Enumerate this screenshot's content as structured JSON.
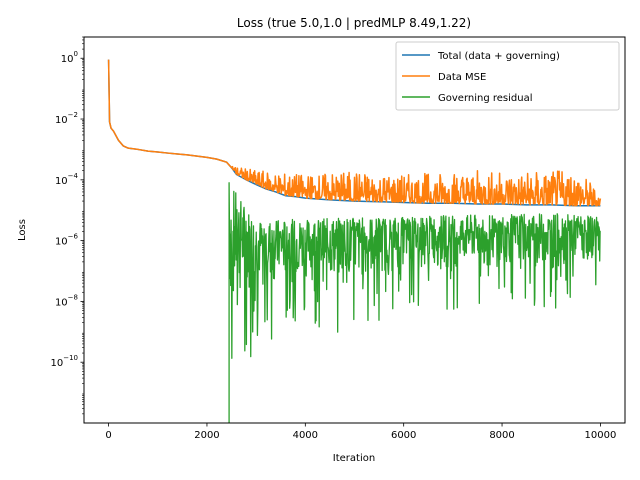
{
  "chart_data": {
    "type": "line",
    "title": "Loss (true 5.0,1.0 | predMLP 8.49,1.22)",
    "xlabel": "Iteration",
    "ylabel": "Loss",
    "xlim": [
      -500,
      10500
    ],
    "ylim": [
      1e-12,
      5
    ],
    "yscale": "log",
    "grid": false,
    "legend_position": "top-right",
    "x_ticks": [
      0,
      2000,
      4000,
      6000,
      8000,
      10000
    ],
    "x_tick_labels": [
      "0",
      "2000",
      "4000",
      "6000",
      "8000",
      "10000"
    ],
    "y_ticks": [
      1,
      0.01,
      0.0001,
      1e-06,
      1e-08,
      1e-10
    ],
    "y_tick_labels": [
      {
        "base": "10",
        "exp": "0"
      },
      {
        "base": "10",
        "exp": "−2"
      },
      {
        "base": "10",
        "exp": "−4"
      },
      {
        "base": "10",
        "exp": "−6"
      },
      {
        "base": "10",
        "exp": "−8"
      },
      {
        "base": "10",
        "exp": "−10"
      }
    ],
    "series": [
      {
        "name": "Total (data + governing)",
        "color": "#1f77b4",
        "x": [
          0,
          20,
          50,
          100,
          200,
          300,
          400,
          600,
          800,
          1000,
          1200,
          1400,
          1600,
          1800,
          2000,
          2200,
          2400,
          2500,
          2600,
          2800,
          3000,
          3200,
          3400,
          3600,
          3800,
          4000,
          4500,
          5000,
          5500,
          6000,
          6500,
          7000,
          7500,
          8000,
          8500,
          9000,
          9500,
          10000
        ],
        "y": [
          0.9,
          0.008,
          0.005,
          0.004,
          0.002,
          0.0013,
          0.0011,
          0.001,
          0.00088,
          0.00082,
          0.00076,
          0.00071,
          0.00066,
          0.0006,
          0.00055,
          0.00048,
          0.00038,
          0.00025,
          0.00015,
          0.0001,
          7e-05,
          5e-05,
          4e-05,
          3e-05,
          2.8e-05,
          2.5e-05,
          2.2e-05,
          2e-05,
          1.9e-05,
          1.8e-05,
          1.7e-05,
          1.7e-05,
          1.6e-05,
          1.6e-05,
          1.5e-05,
          1.5e-05,
          1.4e-05,
          1.4e-05
        ]
      },
      {
        "name": "Data MSE",
        "color": "#ff7f0e",
        "x": [
          0,
          20,
          50,
          100,
          200,
          300,
          400,
          600,
          800,
          1000,
          1200,
          1400,
          1600,
          1800,
          2000,
          2200,
          2400,
          2500,
          2600,
          2800,
          3000,
          3200,
          3400,
          3600,
          3800,
          4000,
          4500,
          5000,
          5500,
          6000,
          6500,
          7000,
          7500,
          8000,
          8500,
          9000,
          9500,
          10000
        ],
        "y": [
          0.9,
          0.008,
          0.005,
          0.004,
          0.002,
          0.0013,
          0.0011,
          0.001,
          0.00088,
          0.00082,
          0.00076,
          0.00071,
          0.00066,
          0.0006,
          0.00055,
          0.00048,
          0.00038,
          0.00025,
          0.00015,
          0.0001,
          7e-05,
          5e-05,
          4e-05,
          3e-05,
          2.8e-05,
          2.5e-05,
          2.2e-05,
          2e-05,
          1.9e-05,
          1.8e-05,
          1.7e-05,
          1.7e-05,
          1.6e-05,
          1.6e-05,
          1.5e-05,
          1.5e-05,
          1.4e-05,
          1.4e-05
        ],
        "noisy_upper_band": {
          "x": [
            2500,
            3000,
            4000,
            5000,
            6000,
            7000,
            8000,
            9000,
            9500,
            10000
          ],
          "y": [
            0.0003,
            0.0002,
            0.00015,
            0.0002,
            0.00015,
            0.0002,
            0.0002,
            0.0002,
            0.00025,
            4e-05
          ]
        }
      },
      {
        "name": "Governing residual",
        "color": "#2ca02c",
        "x": [
          2450,
          2460,
          2500,
          2600,
          3000,
          4000,
          5000,
          6000,
          7000,
          8000,
          9000,
          9500,
          10000
        ],
        "y": [
          1e-12,
          8e-05,
          2e-06,
          1e-06,
          1e-06,
          8e-07,
          8e-07,
          9e-07,
          1e-06,
          1e-06,
          1e-06,
          1.5e-06,
          2e-07
        ],
        "noisy_band": {
          "x": [
            2450,
            3000,
            4000,
            5000,
            6000,
            7000,
            8000,
            9000,
            10000
          ],
          "upper": [
            8e-05,
            5e-06,
            5e-06,
            6e-06,
            6e-06,
            7e-06,
            7e-06,
            8e-06,
            6e-06
          ],
          "lower": [
            1e-12,
            3e-10,
            1e-09,
            5e-10,
            5e-09,
            5e-09,
            5e-09,
            3e-09,
            3e-08
          ]
        }
      }
    ]
  }
}
